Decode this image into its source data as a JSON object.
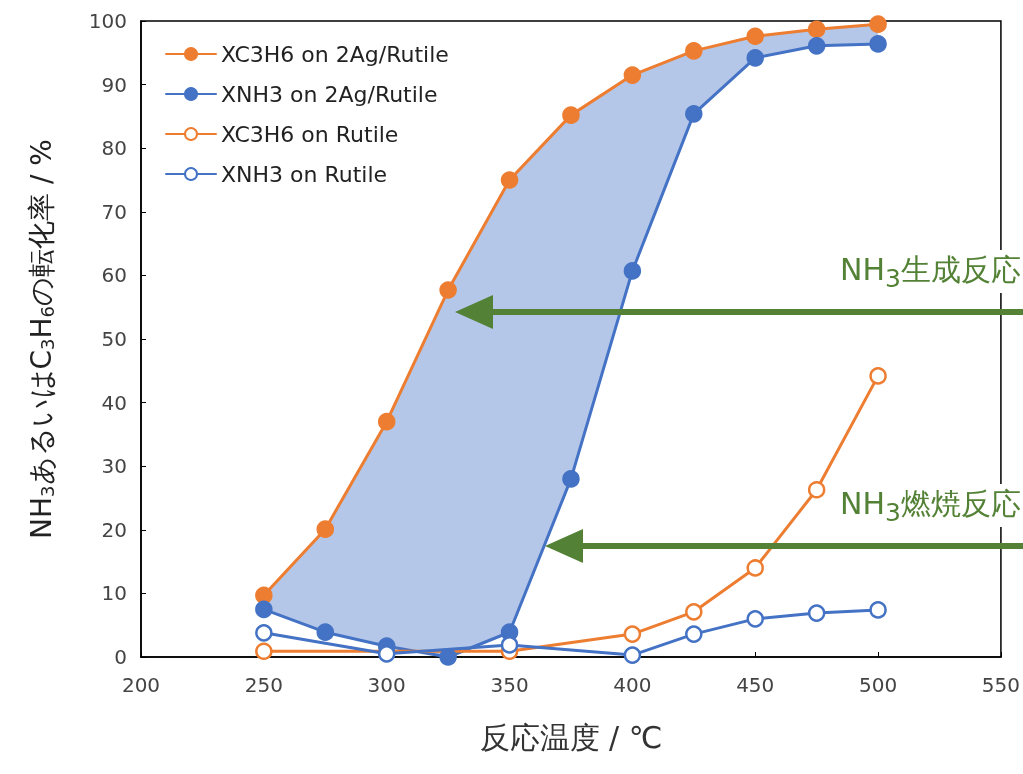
{
  "chart_data": {
    "type": "line",
    "xlabel": "反応温度 / ℃",
    "ylabel": "NH$_{3}$あるいはC$_{3}$H$_{6}$の転化率 / %",
    "xlim": [
      200,
      550
    ],
    "xticks": [
      200,
      250,
      300,
      350,
      400,
      450,
      500,
      550
    ],
    "ylim": [
      0,
      100
    ],
    "yticks": [
      0,
      10,
      20,
      30,
      40,
      50,
      60,
      70,
      80,
      90,
      100
    ],
    "grid": false,
    "legend": "top left",
    "line_style": "solid",
    "series": [
      {
        "name": "XC3H6 on 2Ag/Rutile",
        "color": "#ed7d31",
        "marker": "circle",
        "x": [
          250,
          275,
          300,
          325,
          350,
          375,
          400,
          425,
          450,
          475,
          500
        ],
        "values": [
          9.7,
          20.1,
          37,
          57.7,
          75,
          85.2,
          91.5,
          95.3,
          97.6,
          98.7,
          99.5
        ],
        "lower": [
          7.5,
          3.9,
          1.7,
          0,
          3.9,
          28,
          60.7,
          85.4,
          94.2,
          96.1,
          96.4
        ],
        "upper": [
          9.7,
          20.1,
          37,
          57.7,
          75,
          85.2,
          91.5,
          95.3,
          97.6,
          98.7,
          99.5
        ]
      },
      {
        "name": "XNH3 on 2Ag/Rutile",
        "color": "#4472c4",
        "marker": "circle",
        "x": [
          250,
          275,
          300,
          325,
          350,
          375,
          400,
          425,
          450,
          475,
          500
        ],
        "values": [
          7.5,
          3.9,
          1.7,
          0,
          3.9,
          28,
          60.7,
          85.4,
          94.2,
          96.1,
          96.4
        ]
      },
      {
        "name": "XC3H6 on Rutile",
        "color": "#ed7d31",
        "marker": "circle-open",
        "x": [
          250,
          350,
          400,
          425,
          450,
          475,
          500
        ],
        "values": [
          0.9,
          0.9,
          3.6,
          7.1,
          14,
          26.3,
          44.2
        ]
      },
      {
        "name": "XNH3 on Rutile",
        "color": "#4472c4",
        "marker": "circle-open",
        "x": [
          250,
          300,
          350,
          400,
          425,
          450,
          475,
          500
        ],
        "values": [
          3.8,
          0.5,
          1.9,
          0.3,
          3.6,
          6,
          6.9,
          7.4
        ]
      }
    ],
    "annotations": [
      "NH$_{3}$生成反応",
      "NH$_{3}$燃焼反応"
    ]
  }
}
